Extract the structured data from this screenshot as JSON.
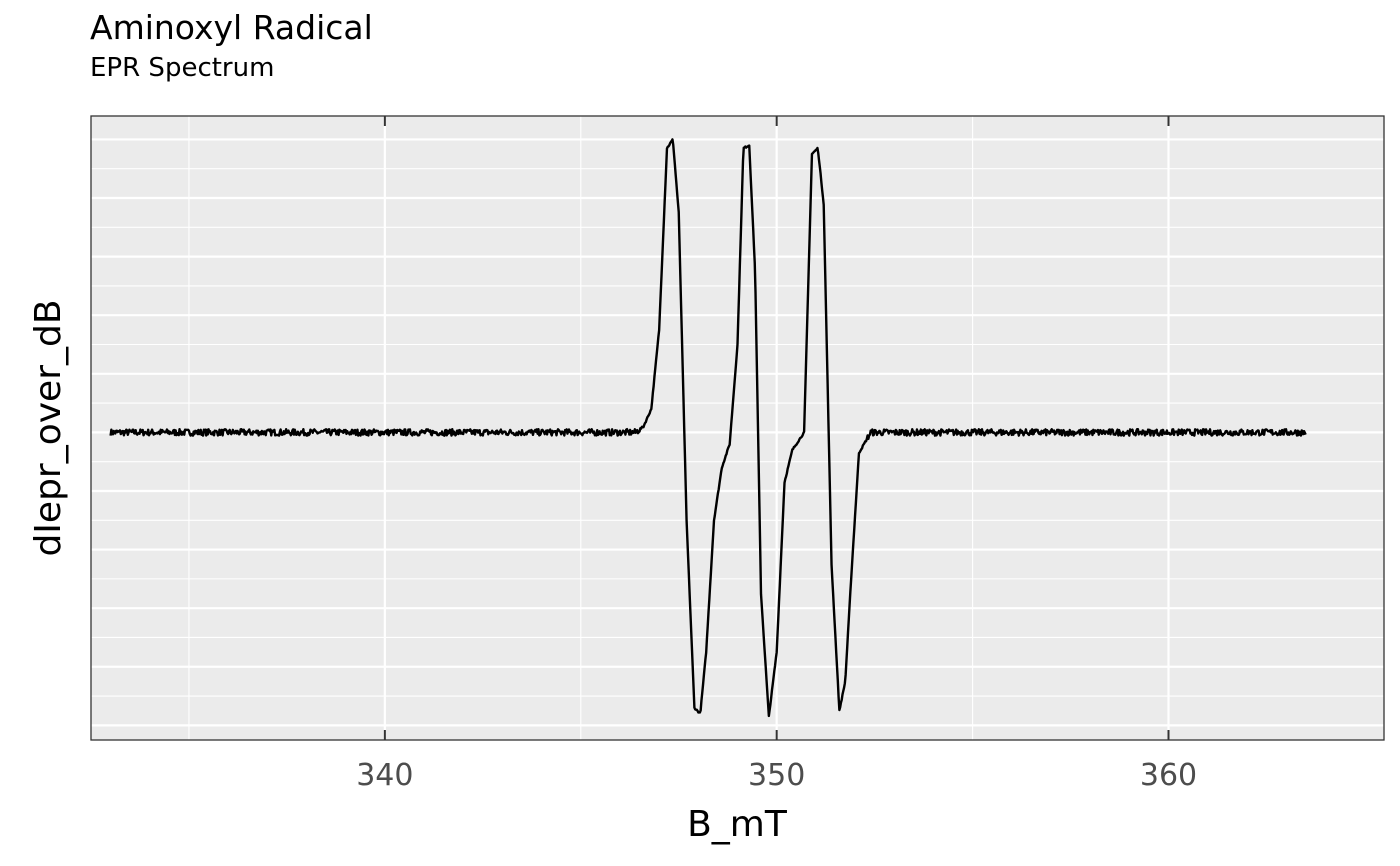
{
  "chart_data": {
    "type": "line",
    "title": "Aminoxyl Radical",
    "subtitle": "EPR Spectrum",
    "xlabel": "B_mT",
    "ylabel": "dIepr_over_dB",
    "xlim": [
      332.5,
      365.5
    ],
    "ylim": [
      -1.05,
      1.08
    ],
    "x_ticks": [
      340,
      350,
      360
    ],
    "x_tick_labels": [
      "340",
      "350",
      "360"
    ],
    "y_tick_labels": [],
    "grid": true,
    "legend": "none",
    "series": [
      {
        "color": "#000000",
        "points": [
          [
            333.0,
            0.0
          ],
          [
            346.4,
            0.0
          ],
          [
            346.6,
            0.02
          ],
          [
            346.8,
            0.08
          ],
          [
            347.0,
            0.35
          ],
          [
            347.2,
            0.97
          ],
          [
            347.35,
            1.0
          ],
          [
            347.5,
            0.75
          ],
          [
            347.7,
            -0.3
          ],
          [
            347.9,
            -0.94
          ],
          [
            348.05,
            -0.96
          ],
          [
            348.2,
            -0.75
          ],
          [
            348.4,
            -0.3
          ],
          [
            348.6,
            -0.12
          ],
          [
            348.8,
            -0.04
          ],
          [
            349.0,
            0.3
          ],
          [
            349.15,
            0.97
          ],
          [
            349.3,
            0.98
          ],
          [
            349.45,
            0.55
          ],
          [
            349.6,
            -0.55
          ],
          [
            349.8,
            -0.97
          ],
          [
            350.0,
            -0.75
          ],
          [
            350.2,
            -0.17
          ],
          [
            350.4,
            -0.06
          ],
          [
            350.7,
            0.0
          ],
          [
            350.9,
            0.95
          ],
          [
            351.05,
            0.97
          ],
          [
            351.2,
            0.78
          ],
          [
            351.4,
            -0.45
          ],
          [
            351.6,
            -0.95
          ],
          [
            351.75,
            -0.85
          ],
          [
            351.9,
            -0.5
          ],
          [
            352.1,
            -0.07
          ],
          [
            352.4,
            0.0
          ],
          [
            363.5,
            0.0
          ]
        ]
      }
    ]
  }
}
